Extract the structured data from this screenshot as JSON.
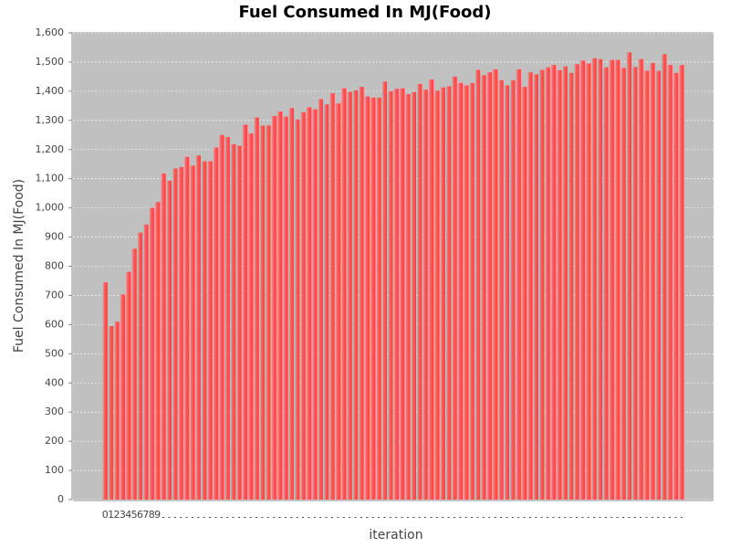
{
  "chart_data": {
    "type": "bar",
    "title": "Fuel Consumed In MJ(Food)",
    "x_label": "iteration",
    "y_label": "Fuel Consumed In MJ(Food)",
    "categories": [
      "0",
      "1",
      "2",
      "3",
      "4",
      "5",
      "6",
      "7",
      "8",
      "9",
      null,
      null,
      null,
      null,
      null,
      null,
      null,
      null,
      null,
      null,
      null,
      null,
      null,
      null,
      null,
      null,
      null,
      null,
      null,
      null,
      null,
      null,
      null,
      null,
      null,
      null,
      null,
      null,
      null,
      null,
      null,
      null,
      null,
      null,
      null,
      null,
      null,
      null,
      null,
      null,
      null,
      null,
      null,
      null,
      null,
      null,
      null,
      null,
      null,
      null,
      null,
      null,
      null,
      null,
      null,
      null,
      null,
      null,
      null,
      null,
      null,
      null,
      null,
      null,
      null,
      null,
      null,
      null,
      null,
      null,
      null,
      null,
      null,
      null,
      null,
      null,
      null,
      null,
      null,
      null,
      null,
      null,
      null,
      null,
      null,
      null,
      null,
      null,
      null,
      null
    ],
    "values": [
      745,
      595,
      610,
      703,
      780,
      860,
      915,
      943,
      1000,
      1020,
      1118,
      1093,
      1135,
      1140,
      1175,
      1145,
      1180,
      1160,
      1160,
      1207,
      1250,
      1243,
      1218,
      1213,
      1285,
      1255,
      1310,
      1282,
      1283,
      1315,
      1330,
      1313,
      1342,
      1303,
      1328,
      1345,
      1338,
      1373,
      1355,
      1393,
      1358,
      1410,
      1398,
      1403,
      1415,
      1382,
      1378,
      1378,
      1433,
      1400,
      1408,
      1410,
      1390,
      1397,
      1425,
      1405,
      1440,
      1402,
      1413,
      1417,
      1450,
      1428,
      1420,
      1428,
      1473,
      1455,
      1465,
      1475,
      1438,
      1420,
      1438,
      1475,
      1415,
      1465,
      1458,
      1473,
      1482,
      1490,
      1472,
      1485,
      1463,
      1493,
      1505,
      1495,
      1513,
      1510,
      1482,
      1507,
      1507,
      1480,
      1533,
      1483,
      1510,
      1470,
      1497,
      1470,
      1527,
      1490,
      1463,
      1490
    ],
    "color": "#ff5555",
    "ylim": [
      0,
      1600
    ],
    "yticks": [
      0,
      100,
      200,
      300,
      400,
      500,
      600,
      700,
      800,
      900,
      {
        "value": 1000,
        "label": "1,000"
      },
      {
        "value": 1100,
        "label": "1,100"
      },
      {
        "value": 1200,
        "label": "1,200"
      },
      {
        "value": 1300,
        "label": "1,300"
      },
      {
        "value": 1400,
        "label": "1,400"
      },
      {
        "value": 1500,
        "label": "1,500"
      },
      {
        "value": 1600,
        "label": "1,600"
      }
    ],
    "grid": true
  }
}
